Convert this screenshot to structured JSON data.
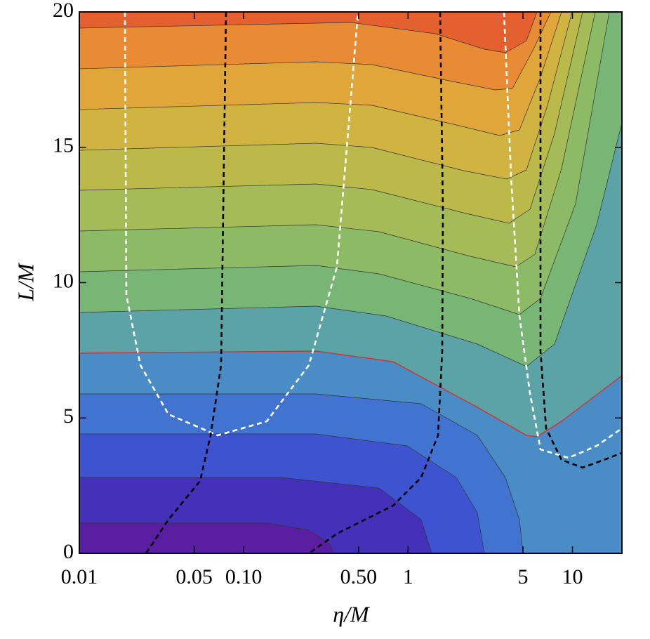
{
  "chart_data": {
    "type": "contour",
    "x_label": "η/M",
    "y_label": "L/M",
    "xscale": "log",
    "xlim": [
      0.01,
      20
    ],
    "ylim": [
      0,
      20
    ],
    "xticks": [
      0.01,
      0.05,
      {
        "value": 0.1,
        "label": "0.10"
      },
      {
        "value": 0.5,
        "label": "0.50"
      },
      1,
      5,
      10
    ],
    "yticks": [
      0,
      5,
      10,
      15,
      20
    ]
  }
}
